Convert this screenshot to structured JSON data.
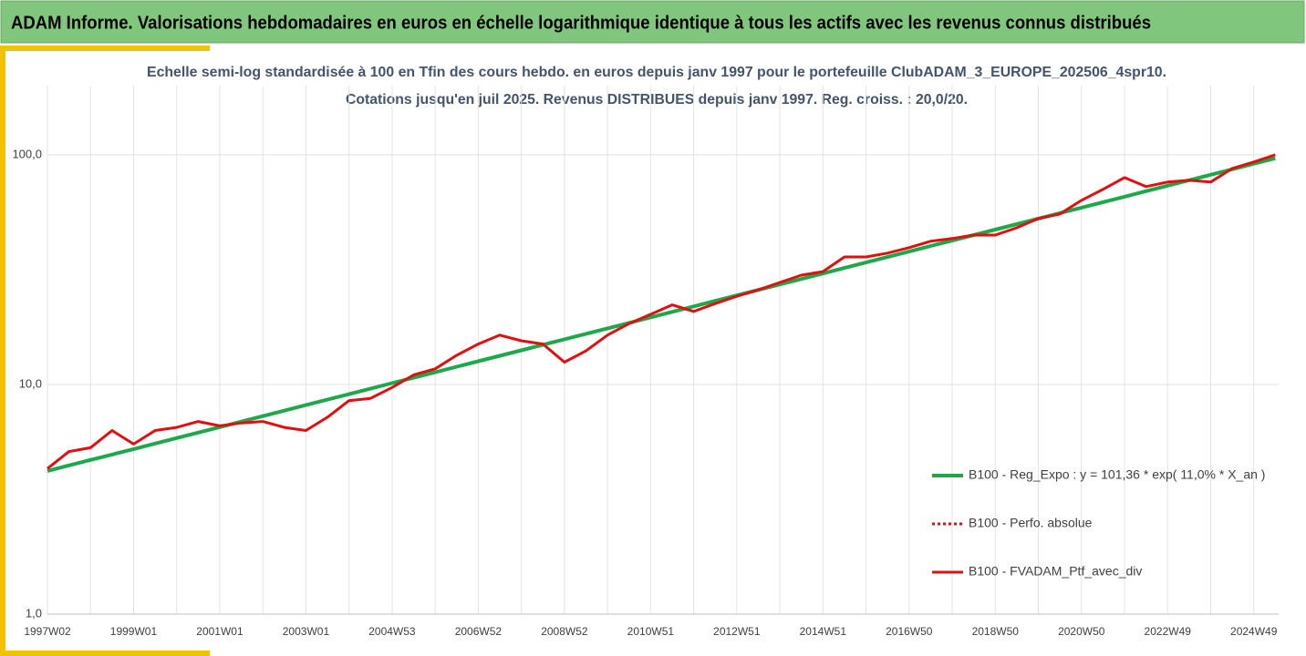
{
  "chart_data": {
    "type": "line",
    "header": "ADAM Informe. Valorisations hebdomadaires en euros en échelle logarithmique identique à tous les actifs avec les revenus connus distribués",
    "title": "Echelle semi-log standardisée à 100 en Tfin des cours hebdo. en euros depuis janv 1997 pour le portefeuille ClubADAM_3_EUROPE_202506_4spr10.",
    "subtitle": "Cotations jusqu'en juil 2025. Revenus DISTRIBUES depuis janv 1997. Reg. croiss. : 20,0/20.",
    "log_y": true,
    "grid": true,
    "legend": "right",
    "ylim": [
      1,
      200
    ],
    "yticks": [
      {
        "value": 1,
        "label": "1,0"
      },
      {
        "value": 10,
        "label": "10,0"
      },
      {
        "value": 100,
        "label": "100,0"
      }
    ],
    "categories": [
      "1997W02",
      null,
      null,
      null,
      "1999W01",
      null,
      null,
      null,
      "2001W01",
      null,
      null,
      null,
      "2003W01",
      null,
      null,
      null,
      "2004W53",
      null,
      null,
      null,
      "2006W52",
      null,
      null,
      null,
      "2008W52",
      null,
      null,
      null,
      "2010W51",
      null,
      null,
      null,
      "2012W51",
      null,
      null,
      null,
      "2014W51",
      null,
      null,
      null,
      "2016W50",
      null,
      null,
      null,
      "2018W50",
      null,
      null,
      null,
      "2020W50",
      null,
      null,
      null,
      "2022W49",
      null,
      null,
      null,
      "2024W49",
      null
    ],
    "series": [
      {
        "name": "B100 - Reg_Expo : y = 101,36 * exp( 11,0% *  X_an )",
        "color": "#1fa84a",
        "width": 4,
        "values": [
          4.2,
          4.44,
          4.69,
          4.95,
          5.23,
          5.53,
          5.84,
          6.17,
          6.52,
          6.89,
          7.28,
          7.69,
          8.13,
          8.59,
          9.07,
          9.58,
          10.13,
          10.7,
          11.3,
          11.94,
          12.62,
          13.33,
          14.08,
          14.88,
          15.72,
          16.61,
          17.55,
          18.54,
          19.59,
          20.7,
          21.87,
          23.11,
          24.41,
          25.79,
          27.25,
          28.79,
          30.42,
          32.14,
          33.96,
          35.88,
          37.91,
          40.05,
          42.31,
          44.7,
          47.23,
          49.9,
          52.72,
          55.71,
          58.86,
          62.18,
          65.7,
          69.41,
          73.34,
          77.49,
          81.87,
          86.5,
          91.39,
          96.55
        ]
      },
      {
        "name": "B100 - Perfo. absolue",
        "color": "#e01010",
        "width": 3,
        "dash": "dotted"
      },
      {
        "name": "B100 - FVADAM_Ptf_avec_div",
        "color": "#e01010",
        "width": 3,
        "values": [
          4.3,
          5.1,
          5.3,
          6.3,
          5.5,
          6.3,
          6.5,
          6.9,
          6.6,
          6.8,
          6.9,
          6.5,
          6.3,
          7.2,
          8.5,
          8.7,
          9.7,
          11.0,
          11.7,
          13.4,
          15.0,
          16.4,
          15.5,
          15.0,
          12.5,
          14.0,
          16.4,
          18.4,
          20.2,
          22.2,
          20.8,
          22.5,
          24.2,
          25.8,
          27.8,
          29.9,
          31.0,
          35.9,
          35.9,
          37.3,
          39.4,
          42.0,
          43.2,
          44.7,
          44.7,
          48.1,
          52.8,
          55.2,
          63.3,
          70.7,
          79.6,
          72.7,
          76.1,
          77.4,
          76.1,
          87.2,
          93.0,
          100.0
        ]
      }
    ]
  }
}
